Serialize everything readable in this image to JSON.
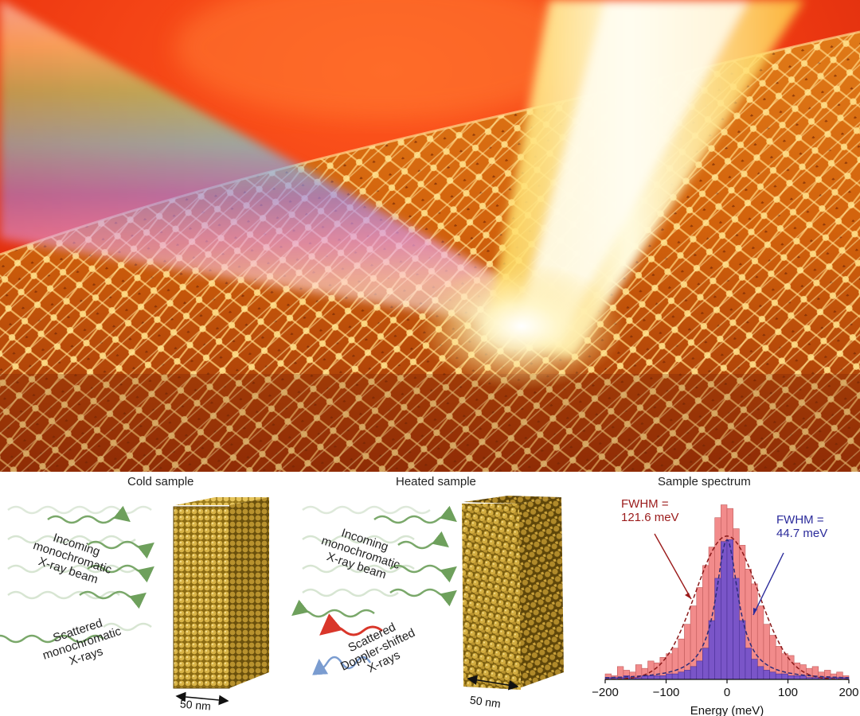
{
  "panels": {
    "cold": {
      "title": "Cold sample",
      "incoming": [
        "Incoming",
        "monochromatic",
        "X-ray beam"
      ],
      "scattered": [
        "Scattered",
        "monochromatic",
        "X-rays"
      ],
      "scale": "50 nm"
    },
    "heated": {
      "title": "Heated sample",
      "incoming": [
        "Incoming",
        "monochromatic",
        "X-ray beam"
      ],
      "scattered": [
        "Scattered",
        "Doppler-shifted",
        "X-rays"
      ],
      "scale": "50 nm"
    },
    "spectrum": {
      "title": "Sample spectrum"
    }
  },
  "colors": {
    "wave_green": "#7aa86a",
    "wave_red": "#d9362a",
    "wave_blue": "#7a9cd0",
    "crystal_gold": "#c9a23a",
    "hist_pink": "#f28b8b",
    "hist_purple": "#7a55c8",
    "annot_red": "#9b1b1b",
    "annot_blue": "#2b2b9b"
  },
  "chart_data": {
    "type": "bar",
    "title": "Sample spectrum",
    "xlabel": "Energy (meV)",
    "ylabel": "",
    "xlim": [
      -200,
      200
    ],
    "xticks": [
      "−200",
      "−100",
      "0",
      "100",
      "200"
    ],
    "xtick_values": [
      -200,
      -100,
      0,
      100,
      200
    ],
    "bin_width": 10,
    "series": [
      {
        "color": "#f28b8b",
        "bin_centers": [
          -195,
          -185,
          -175,
          -165,
          -155,
          -145,
          -135,
          -125,
          -115,
          -105,
          -95,
          -85,
          -75,
          -65,
          -55,
          -45,
          -35,
          -25,
          -15,
          -5,
          5,
          15,
          25,
          35,
          45,
          55,
          65,
          75,
          85,
          95,
          105,
          115,
          125,
          135,
          145,
          155,
          165,
          175,
          185,
          195
        ],
        "values": [
          3,
          2,
          7,
          5,
          4,
          8,
          6,
          10,
          9,
          12,
          14,
          17,
          22,
          30,
          40,
          50,
          62,
          72,
          88,
          95,
          93,
          82,
          73,
          60,
          52,
          40,
          30,
          24,
          18,
          14,
          13,
          9,
          8,
          6,
          7,
          4,
          5,
          3,
          4,
          2
        ]
      },
      {
        "color": "#7a55c8",
        "bin_centers": [
          -195,
          -185,
          -175,
          -165,
          -155,
          -145,
          -135,
          -125,
          -115,
          -105,
          -95,
          -85,
          -75,
          -65,
          -55,
          -45,
          -35,
          -25,
          -15,
          -5,
          5,
          15,
          25,
          35,
          45,
          55,
          65,
          75,
          85,
          95,
          105,
          115,
          125,
          135,
          145,
          155,
          165,
          175,
          185,
          195
        ],
        "values": [
          1,
          1,
          1,
          2,
          1,
          1,
          2,
          2,
          2,
          2,
          3,
          3,
          4,
          5,
          7,
          10,
          17,
          32,
          55,
          75,
          76,
          55,
          32,
          17,
          11,
          7,
          5,
          4,
          3,
          3,
          2,
          2,
          2,
          1,
          1,
          1,
          1,
          1,
          1,
          1
        ]
      }
    ],
    "fits": [
      {
        "type": "gaussian",
        "fwhm": 121.6,
        "style": "dashed",
        "color": "#8b1a1a",
        "peak": 78
      },
      {
        "type": "lorentzian",
        "fwhm": 44.7,
        "style": "dashed",
        "color": "#2b2b7a",
        "peak": 76
      }
    ],
    "annotations": [
      {
        "lines": [
          "FWHM =",
          "121.6 meV"
        ],
        "color": "#9b1b1b"
      },
      {
        "lines": [
          "FWHM =",
          "44.7 meV"
        ],
        "color": "#2b2b9b"
      }
    ],
    "ymax": 100,
    "grid": false
  }
}
